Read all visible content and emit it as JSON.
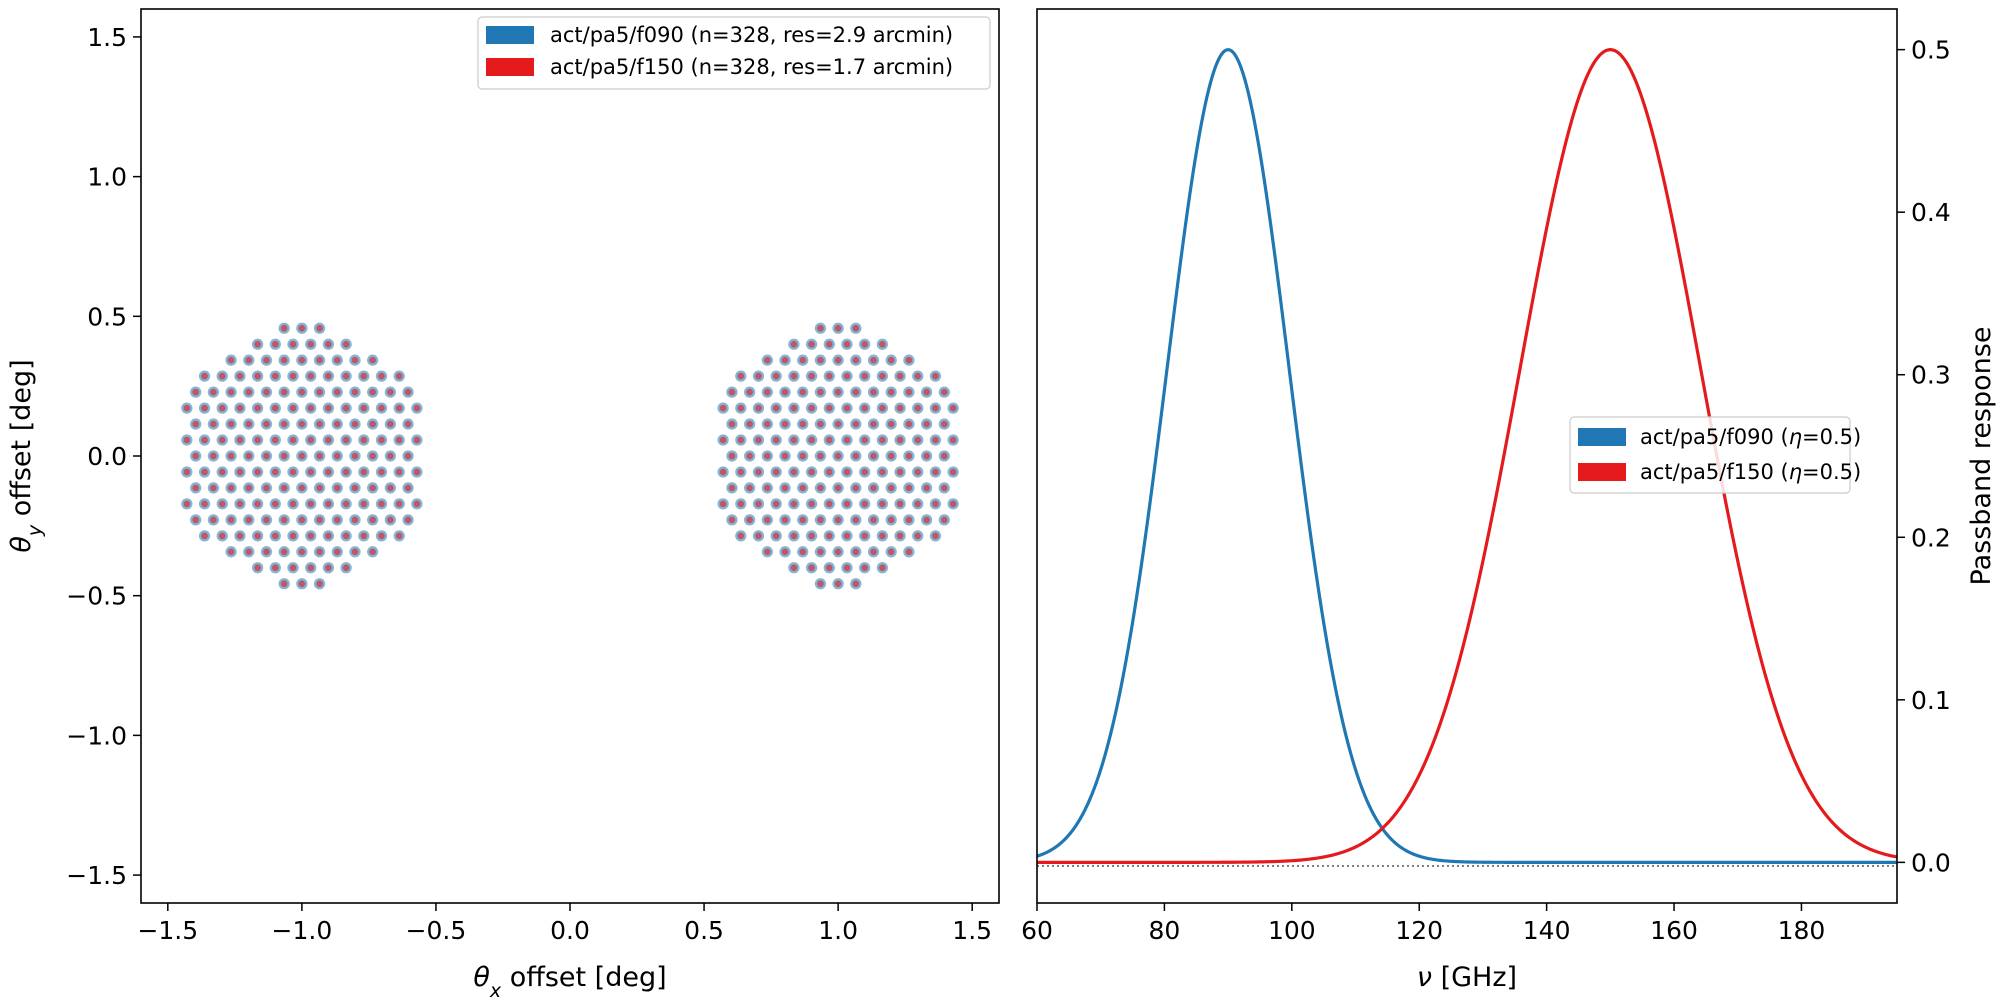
{
  "chart_data": [
    {
      "type": "scatter",
      "title": "",
      "xlabel_symbol": "θ",
      "xlabel_sub": "x",
      "xlabel_rest": " offset [deg]",
      "ylabel_symbol": "θ",
      "ylabel_sub": "y",
      "ylabel_rest": " offset [deg]",
      "xlim": [
        -1.6,
        1.6
      ],
      "ylim": [
        -1.6,
        1.6
      ],
      "xticks": [
        -1.5,
        -1.0,
        -0.5,
        0.0,
        0.5,
        1.0,
        1.5
      ],
      "xtick_labels": [
        "−1.5",
        "−1.0",
        "−0.5",
        "0.0",
        "0.5",
        "1.0",
        "1.5"
      ],
      "yticks": [
        -1.5,
        -1.0,
        -0.5,
        0.0,
        0.5,
        1.0,
        1.5
      ],
      "ytick_labels": [
        "−1.5",
        "−1.0",
        "−0.5",
        "0.0",
        "0.5",
        "1.0",
        "1.5"
      ],
      "legend_position": "upper-right",
      "series": [
        {
          "name": "act/pa5/f090 (n=328, res=2.9 arcmin)",
          "color": "#1f77b4",
          "array_centers": [
            [
              -1.0,
              0.0
            ],
            [
              1.0,
              0.0
            ]
          ],
          "detectors_per_array": 164,
          "hexagon_radius_deg": 0.52,
          "pixel_spacing_deg": 0.066
        },
        {
          "name": "act/pa5/f150 (n=328, res=1.7 arcmin)",
          "color": "#e41a1c",
          "array_centers": [
            [
              -1.0,
              0.0
            ],
            [
              1.0,
              0.0
            ]
          ],
          "detectors_per_array": 164,
          "hexagon_radius_deg": 0.52,
          "pixel_spacing_deg": 0.066
        }
      ]
    },
    {
      "type": "line",
      "title": "",
      "xlabel_symbol": "ν",
      "xlabel_rest": " [GHz]",
      "ylabel": "Passband response",
      "yaxis_side": "right",
      "xlim": [
        60,
        195
      ],
      "ylim": [
        -0.025,
        0.525
      ],
      "xticks": [
        60,
        80,
        100,
        120,
        140,
        160,
        180
      ],
      "xtick_labels": [
        "60",
        "80",
        "100",
        "120",
        "140",
        "160",
        "180"
      ],
      "yticks": [
        0.0,
        0.1,
        0.2,
        0.3,
        0.4,
        0.5
      ],
      "ytick_labels": [
        "0.0",
        "0.1",
        "0.2",
        "0.3",
        "0.4",
        "0.5"
      ],
      "legend_position": "center-right",
      "series": [
        {
          "name_prefix": "act/pa5/f090 (",
          "name_symbol": "η",
          "name_suffix": "=0.5)",
          "color": "#1f77b4",
          "peak": 0.5,
          "center_ghz": 90,
          "sigma_ghz": 9.6,
          "support_ghz": [
            60,
            195
          ]
        },
        {
          "name_prefix": "act/pa5/f150 (",
          "name_symbol": "η",
          "name_suffix": "=0.5)",
          "color": "#e41a1c",
          "peak": 0.5,
          "center_ghz": 150,
          "sigma_ghz": 14.2,
          "support_ghz": [
            60,
            195
          ]
        }
      ]
    }
  ]
}
